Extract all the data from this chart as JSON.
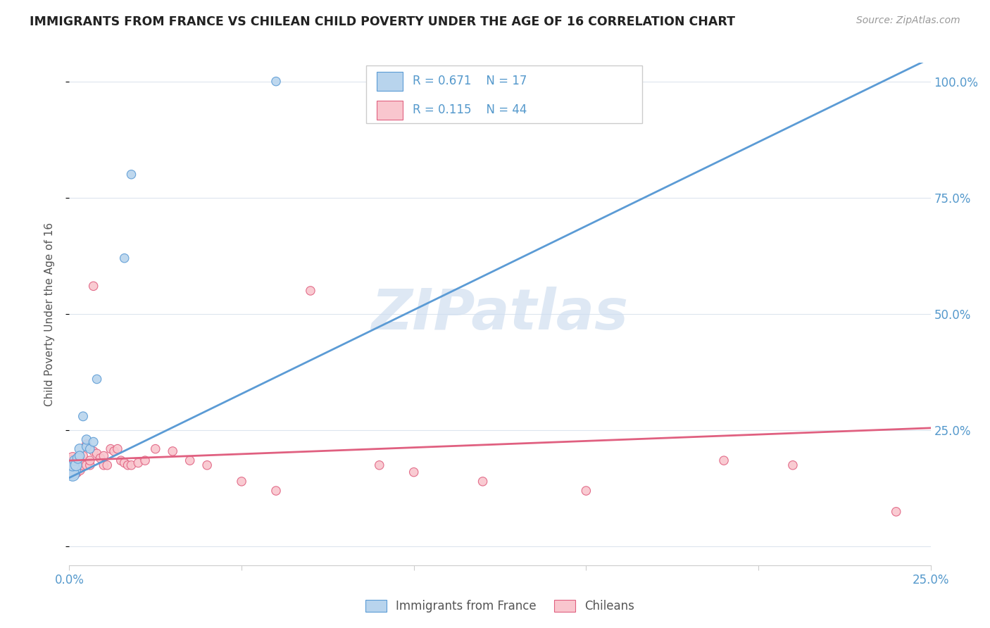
{
  "title": "IMMIGRANTS FROM FRANCE VS CHILEAN CHILD POVERTY UNDER THE AGE OF 16 CORRELATION CHART",
  "source": "Source: ZipAtlas.com",
  "ylabel": "Child Poverty Under the Age of 16",
  "legend_blue_label": "Immigrants from France",
  "legend_pink_label": "Chileans",
  "R_blue": 0.671,
  "N_blue": 17,
  "R_pink": 0.115,
  "N_pink": 44,
  "blue_color": "#b8d4ed",
  "blue_line_color": "#5b9bd5",
  "blue_edge_color": "#5b9bd5",
  "pink_color": "#f9c6ce",
  "pink_line_color": "#e06080",
  "pink_edge_color": "#e06080",
  "watermark_text": "ZIPatlas",
  "watermark_color": "#d0dff0",
  "xmin": 0.0,
  "xmax": 0.25,
  "ymin": 0.0,
  "ymax": 1.0,
  "ytick_values": [
    0.0,
    0.25,
    0.5,
    0.75,
    1.0
  ],
  "ytick_labels_right": [
    "",
    "25.0%",
    "50.0%",
    "75.0%",
    "100.0%"
  ],
  "xtick_values": [
    0.0,
    0.05,
    0.1,
    0.15,
    0.2,
    0.25
  ],
  "xtick_labels": [
    "0.0%",
    "",
    "",
    "",
    "",
    "25.0%"
  ],
  "blue_line_x": [
    0.0,
    0.25
  ],
  "blue_line_y": [
    0.148,
    1.05
  ],
  "pink_line_x": [
    0.0,
    0.25
  ],
  "pink_line_y": [
    0.185,
    0.255
  ],
  "blue_scatter_x": [
    0.0005,
    0.001,
    0.001,
    0.0015,
    0.002,
    0.0025,
    0.003,
    0.003,
    0.004,
    0.005,
    0.005,
    0.006,
    0.007,
    0.008,
    0.016,
    0.018,
    0.06
  ],
  "blue_scatter_y": [
    0.165,
    0.155,
    0.175,
    0.185,
    0.175,
    0.19,
    0.21,
    0.195,
    0.28,
    0.215,
    0.23,
    0.21,
    0.225,
    0.36,
    0.62,
    0.8,
    1.0
  ],
  "blue_scatter_size": [
    380,
    180,
    140,
    100,
    130,
    110,
    100,
    90,
    85,
    85,
    90,
    80,
    85,
    80,
    80,
    80,
    80
  ],
  "pink_scatter_x": [
    0.0005,
    0.001,
    0.001,
    0.0015,
    0.002,
    0.002,
    0.003,
    0.003,
    0.004,
    0.004,
    0.005,
    0.005,
    0.006,
    0.006,
    0.007,
    0.007,
    0.008,
    0.009,
    0.01,
    0.01,
    0.011,
    0.012,
    0.013,
    0.014,
    0.015,
    0.016,
    0.017,
    0.018,
    0.02,
    0.022,
    0.025,
    0.03,
    0.035,
    0.04,
    0.05,
    0.06,
    0.07,
    0.09,
    0.1,
    0.12,
    0.15,
    0.19,
    0.21,
    0.24
  ],
  "pink_scatter_y": [
    0.175,
    0.165,
    0.19,
    0.175,
    0.16,
    0.185,
    0.165,
    0.19,
    0.175,
    0.195,
    0.175,
    0.22,
    0.175,
    0.185,
    0.205,
    0.56,
    0.2,
    0.19,
    0.175,
    0.195,
    0.175,
    0.21,
    0.205,
    0.21,
    0.185,
    0.18,
    0.175,
    0.175,
    0.18,
    0.185,
    0.21,
    0.205,
    0.185,
    0.175,
    0.14,
    0.12,
    0.55,
    0.175,
    0.16,
    0.14,
    0.12,
    0.185,
    0.175,
    0.075
  ],
  "pink_scatter_size": [
    420,
    200,
    140,
    110,
    120,
    100,
    110,
    95,
    90,
    85,
    85,
    80,
    80,
    80,
    80,
    80,
    80,
    80,
    80,
    80,
    80,
    80,
    80,
    80,
    80,
    80,
    80,
    80,
    80,
    80,
    80,
    80,
    80,
    80,
    80,
    80,
    80,
    80,
    80,
    80,
    80,
    80,
    80,
    80
  ]
}
